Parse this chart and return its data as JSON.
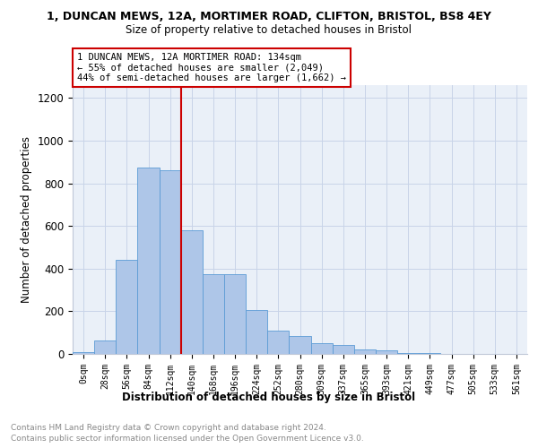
{
  "title": "1, DUNCAN MEWS, 12A, MORTIMER ROAD, CLIFTON, BRISTOL, BS8 4EY",
  "subtitle": "Size of property relative to detached houses in Bristol",
  "xlabel": "Distribution of detached houses by size in Bristol",
  "ylabel": "Number of detached properties",
  "bar_labels": [
    "0sqm",
    "28sqm",
    "56sqm",
    "84sqm",
    "112sqm",
    "140sqm",
    "168sqm",
    "196sqm",
    "224sqm",
    "252sqm",
    "280sqm",
    "309sqm",
    "337sqm",
    "365sqm",
    "393sqm",
    "421sqm",
    "449sqm",
    "477sqm",
    "505sqm",
    "533sqm",
    "561sqm"
  ],
  "bar_values": [
    10,
    65,
    440,
    875,
    860,
    580,
    375,
    375,
    205,
    110,
    85,
    50,
    40,
    20,
    15,
    5,
    3,
    2,
    1,
    1,
    1
  ],
  "bar_color": "#aec6e8",
  "bar_edge_color": "#5b9bd5",
  "property_size": 134,
  "annotation_line1": "1 DUNCAN MEWS, 12A MORTIMER ROAD: 134sqm",
  "annotation_line2": "← 55% of detached houses are smaller (2,049)",
  "annotation_line3": "44% of semi-detached houses are larger (1,662) →",
  "ylim": [
    0,
    1260
  ],
  "yticks": [
    0,
    200,
    400,
    600,
    800,
    1000,
    1200
  ],
  "footnote1": "Contains HM Land Registry data © Crown copyright and database right 2024.",
  "footnote2": "Contains public sector information licensed under the Open Government Licence v3.0.",
  "bin_width": 28
}
